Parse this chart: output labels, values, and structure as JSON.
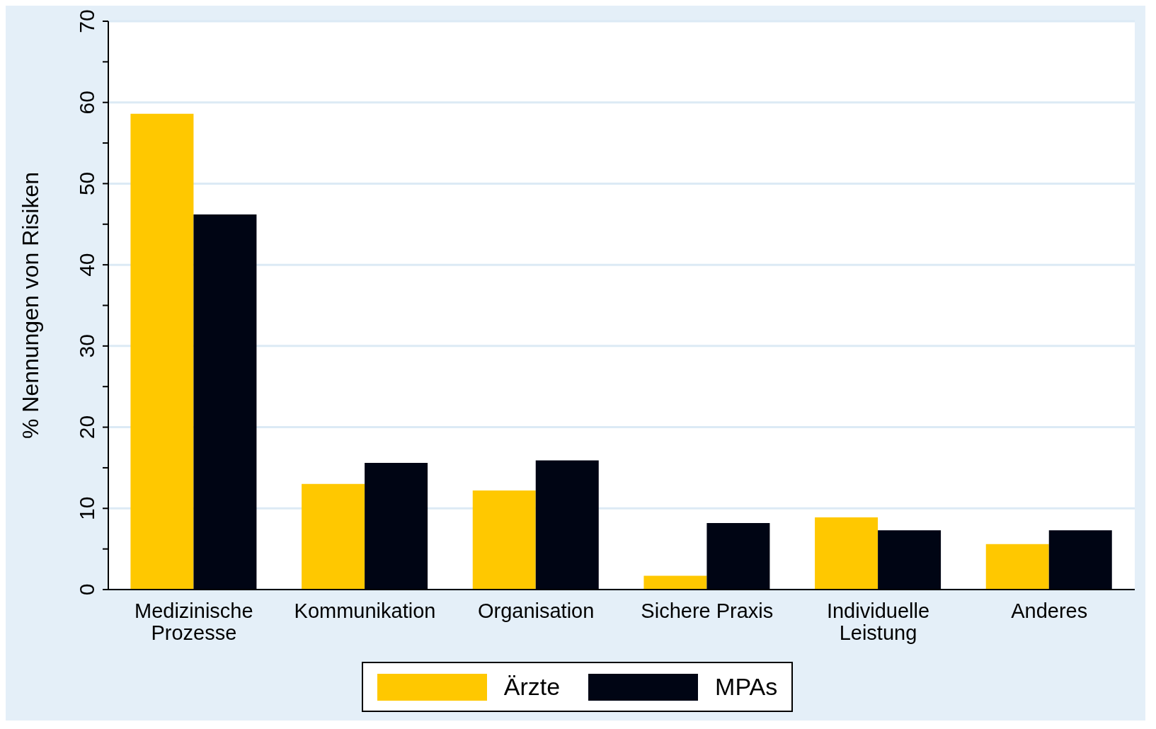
{
  "chart_data": {
    "type": "bar",
    "ylabel": "% Nennungen von Risiken",
    "categories": [
      "Medizinische Prozesse",
      "Kommunikation",
      "Organisation",
      "Sichere Praxis",
      "Individuelle Leistung",
      "Anderes"
    ],
    "series": [
      {
        "name": "Ärzte",
        "color": "#ffc800",
        "values": [
          58.6,
          13.0,
          12.2,
          1.7,
          8.9,
          5.6
        ]
      },
      {
        "name": "MPAs",
        "color": "#000514",
        "values": [
          46.2,
          15.6,
          15.9,
          8.2,
          7.3,
          7.3
        ]
      }
    ],
    "ylim": [
      0,
      70
    ],
    "yticks": [
      0,
      {
        "value": 5,
        "label": null
      },
      10,
      {
        "value": 15,
        "label": null
      },
      20,
      {
        "value": 25,
        "label": null
      },
      30,
      {
        "value": 35,
        "label": null
      },
      40,
      {
        "value": 45,
        "label": null
      },
      50,
      {
        "value": 55,
        "label": null
      },
      60,
      {
        "value": 65,
        "label": null
      },
      70
    ],
    "grid": "y",
    "legend": "bottom"
  }
}
